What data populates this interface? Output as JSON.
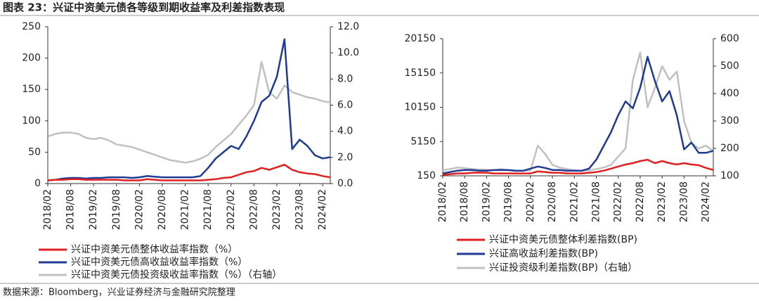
{
  "title": "图表 23：兴证中资美元债各等级到期收益率及利差指数表现",
  "source": "数据来源：Bloomberg，兴业证券经济与金融研究院整理",
  "chart_data": [
    {
      "type": "line",
      "x": [
        "2018/02",
        "2018/04",
        "2018/06",
        "2018/08",
        "2018/10",
        "2018/12",
        "2019/02",
        "2019/04",
        "2019/06",
        "2019/08",
        "2019/10",
        "2019/12",
        "2020/02",
        "2020/04",
        "2020/06",
        "2020/08",
        "2020/10",
        "2020/12",
        "2021/02",
        "2021/04",
        "2021/06",
        "2021/08",
        "2021/10",
        "2021/12",
        "2022/02",
        "2022/04",
        "2022/06",
        "2022/08",
        "2022/10",
        "2022/12",
        "2023/02",
        "2023/04",
        "2023/06",
        "2023/08",
        "2023/10",
        "2023/12",
        "2024/02",
        "2024/04"
      ],
      "xlim": [
        "2018/02",
        "2024/04"
      ],
      "xticks": [
        "2018/02",
        "2018/08",
        "2019/02",
        "2019/08",
        "2020/02",
        "2020/08",
        "2021/02",
        "2021/08",
        "2022/02",
        "2022/08",
        "2023/02",
        "2023/08",
        "2024/02"
      ],
      "ylim": [
        0,
        250
      ],
      "yticks": [
        0,
        50,
        100,
        150,
        200,
        250
      ],
      "y2lim": [
        0,
        12
      ],
      "y2ticks": [
        {
          "value": 0,
          "label": "0.0"
        },
        {
          "value": 2,
          "label": "2.0"
        },
        {
          "value": 4,
          "label": "4.0"
        },
        {
          "value": 6,
          "label": "6.0"
        },
        {
          "value": 8,
          "label": "8.0"
        },
        {
          "value": 10,
          "label": "10.0"
        },
        {
          "value": 12,
          "label": "12.0"
        }
      ],
      "series": [
        {
          "name": "兴证中资美元债整体收益率指数（%）",
          "color": "#e02020",
          "values": [
            5,
            6,
            6,
            7,
            7,
            6,
            6,
            6,
            6,
            6,
            5,
            5,
            5,
            7,
            6,
            5,
            5,
            5,
            5,
            5,
            5,
            6,
            7,
            9,
            10,
            14,
            18,
            20,
            25,
            22,
            26,
            30,
            22,
            18,
            16,
            15,
            12,
            10
          ]
        },
        {
          "name": "兴证中资美元债高收益收益率指数（%）",
          "color": "#1f3a93",
          "values": [
            5,
            6,
            8,
            9,
            9,
            8,
            9,
            9,
            10,
            10,
            10,
            9,
            10,
            12,
            11,
            10,
            10,
            10,
            10,
            10,
            12,
            25,
            40,
            50,
            60,
            55,
            75,
            100,
            130,
            140,
            170,
            230,
            55,
            70,
            60,
            45,
            40,
            42
          ]
        },
        {
          "name": "兴证中资美元债投资级收益率指数（%）（右轴）",
          "color": "#c0c0c0",
          "axis": "y2",
          "values": [
            3.6,
            3.8,
            3.9,
            3.9,
            3.8,
            3.5,
            3.4,
            3.5,
            3.3,
            3.0,
            2.9,
            2.8,
            2.6,
            2.4,
            2.2,
            2.0,
            1.8,
            1.7,
            1.6,
            1.7,
            1.9,
            2.2,
            2.8,
            3.3,
            3.8,
            4.5,
            5.2,
            6.0,
            9.3,
            7.0,
            6.5,
            7.5,
            7.0,
            6.8,
            6.6,
            6.5,
            6.3,
            6.2
          ]
        }
      ]
    },
    {
      "type": "line",
      "x": [
        "2018/02",
        "2018/04",
        "2018/06",
        "2018/08",
        "2018/10",
        "2018/12",
        "2019/02",
        "2019/04",
        "2019/06",
        "2019/08",
        "2019/10",
        "2019/12",
        "2020/02",
        "2020/04",
        "2020/06",
        "2020/08",
        "2020/10",
        "2020/12",
        "2021/02",
        "2021/04",
        "2021/06",
        "2021/08",
        "2021/10",
        "2021/12",
        "2022/02",
        "2022/04",
        "2022/06",
        "2022/08",
        "2022/10",
        "2022/12",
        "2023/02",
        "2023/04",
        "2023/06",
        "2023/08",
        "2023/10",
        "2023/12",
        "2024/02",
        "2024/04"
      ],
      "xlim": [
        "2018/02",
        "2024/04"
      ],
      "xticks": [
        "2018/02",
        "2018/08",
        "2019/02",
        "2019/08",
        "2020/02",
        "2020/08",
        "2021/02",
        "2021/08",
        "2022/02",
        "2022/08",
        "2023/02",
        "2023/08",
        "2024/02"
      ],
      "ylim": [
        150,
        20150
      ],
      "yticks": [
        150,
        5150,
        10150,
        15150,
        20150
      ],
      "y2lim": [
        100,
        600
      ],
      "y2ticks": [
        100,
        200,
        300,
        400,
        500,
        600
      ],
      "series": [
        {
          "name": "兴证中资美元债整体利差指数(BP)",
          "color": "#e02020",
          "values": [
            300,
            400,
            500,
            500,
            600,
            600,
            600,
            500,
            500,
            500,
            500,
            500,
            500,
            800,
            700,
            600,
            600,
            500,
            500,
            500,
            600,
            700,
            900,
            1200,
            1500,
            1800,
            2000,
            2300,
            2500,
            2000,
            2300,
            2000,
            1800,
            2000,
            1800,
            1700,
            1300,
            1000
          ]
        },
        {
          "name": "兴证高收益利差指数(BP)",
          "color": "#1f3a93",
          "values": [
            500,
            700,
            900,
            1000,
            1000,
            900,
            900,
            1000,
            1000,
            1000,
            900,
            900,
            1200,
            1500,
            1300,
            1000,
            1000,
            900,
            900,
            900,
            1200,
            2500,
            4500,
            6500,
            9000,
            11000,
            10000,
            13000,
            17500,
            14000,
            11000,
            12500,
            9000,
            4000,
            5000,
            3500,
            3500,
            3800
          ]
        },
        {
          "name": "兴证投资级利差指数(BP)（右轴）",
          "color": "#c0c0c0",
          "axis": "y2",
          "values": [
            120,
            125,
            130,
            128,
            125,
            123,
            122,
            120,
            125,
            120,
            118,
            118,
            120,
            210,
            180,
            140,
            130,
            125,
            120,
            118,
            120,
            125,
            130,
            140,
            170,
            200,
            450,
            550,
            350,
            420,
            500,
            450,
            480,
            300,
            220,
            200,
            210,
            190
          ]
        }
      ]
    }
  ]
}
